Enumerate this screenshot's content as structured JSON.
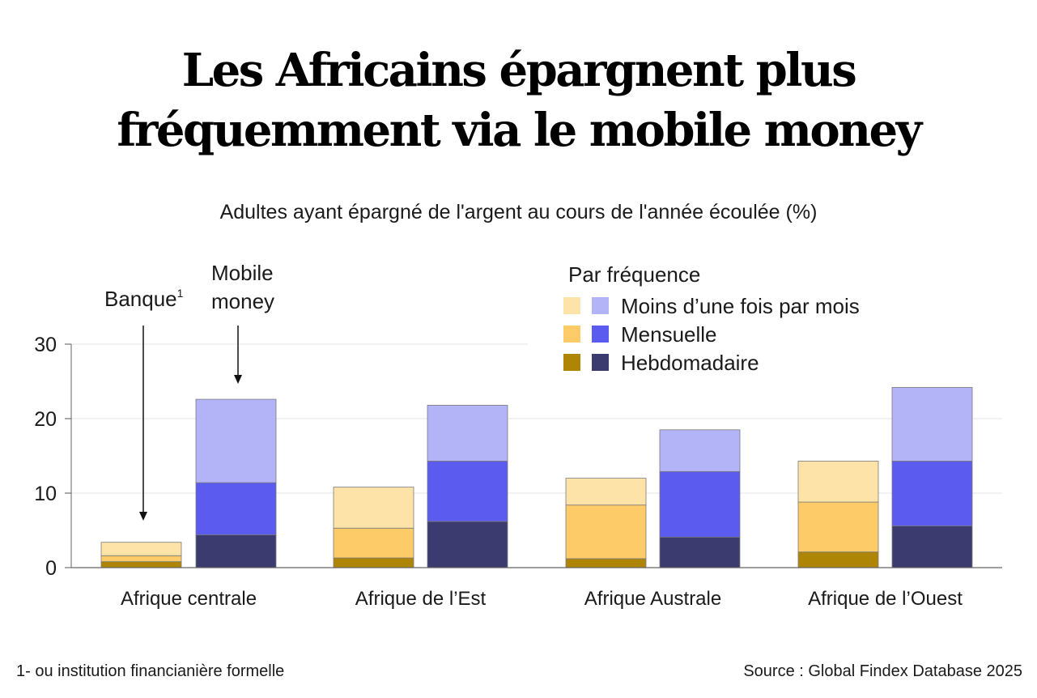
{
  "title_line1": "Les Africains épargnent plus",
  "title_line2": "fréquemment via le mobile money",
  "subtitle": "Adultes ayant épargné de l'argent au cours de l'année écoulée (%)",
  "footnote": "1- ou institution financianière formelle",
  "source": "Source : Global Findex Database 2025",
  "annotations": {
    "bank": "Banque",
    "bank_sup": "1",
    "mobile_line1": "Mobile",
    "mobile_line2": "money"
  },
  "legend": {
    "title": "Par fréquence",
    "items": [
      {
        "label": "Moins d’une fois par mois",
        "bank_color": "#fde3a7",
        "mobile_color": "#b3b3f8"
      },
      {
        "label": "Mensuelle",
        "bank_color": "#fdcb68",
        "mobile_color": "#5b5bf0"
      },
      {
        "label": "Hebdomadaire",
        "bank_color": "#ae8505",
        "mobile_color": "#3b3b70"
      }
    ]
  },
  "chart_data": {
    "type": "bar",
    "stacked": true,
    "categories": [
      "Afrique centrale",
      "Afrique de l’Est",
      "Afrique Australe",
      "Afrique de l’Ouest"
    ],
    "groups": [
      "Banque",
      "Mobile money"
    ],
    "yticks": [
      0,
      10,
      20,
      30
    ],
    "ylim": [
      0,
      30
    ],
    "grid": true,
    "legend_position": "top-right",
    "series": {
      "Banque": [
        {
          "name": "Hebdomadaire",
          "color": "#ae8505",
          "values": [
            0.8,
            1.3,
            1.2,
            2.1
          ]
        },
        {
          "name": "Mensuelle",
          "color": "#fdcb68",
          "values": [
            0.8,
            4.0,
            7.2,
            6.7
          ]
        },
        {
          "name": "Moins d’une fois par mois",
          "color": "#fde3a7",
          "values": [
            1.8,
            5.5,
            3.6,
            5.5
          ]
        }
      ],
      "Mobile money": [
        {
          "name": "Hebdomadaire",
          "color": "#3b3b70",
          "values": [
            4.4,
            6.2,
            4.1,
            5.6
          ]
        },
        {
          "name": "Mensuelle",
          "color": "#5b5bf0",
          "values": [
            7.0,
            8.1,
            8.8,
            8.7
          ]
        },
        {
          "name": "Moins d’une fois par mois",
          "color": "#b3b3f8",
          "values": [
            11.2,
            7.5,
            5.6,
            9.9
          ]
        }
      ]
    }
  }
}
